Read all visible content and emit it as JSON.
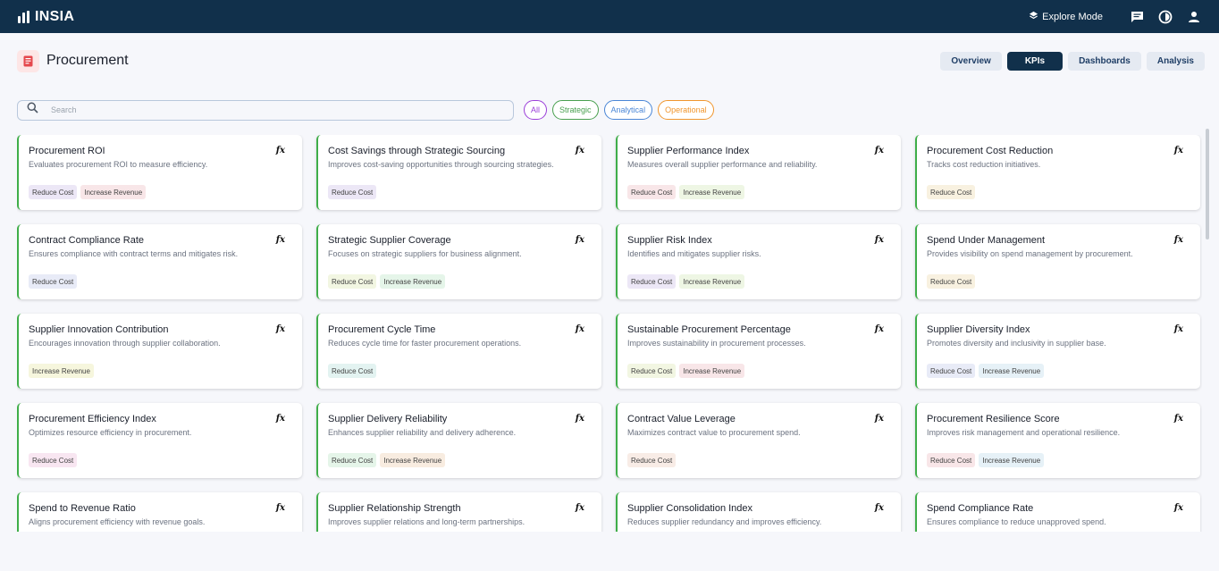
{
  "app": {
    "name": "INSIA"
  },
  "topbar": {
    "explore_label": "Explore Mode"
  },
  "page": {
    "title": "Procurement"
  },
  "tabs": [
    {
      "label": "Overview",
      "active": false
    },
    {
      "label": "KPIs",
      "active": true
    },
    {
      "label": "Dashboards",
      "active": false
    },
    {
      "label": "Analysis",
      "active": false
    }
  ],
  "search": {
    "placeholder": "Search",
    "value": ""
  },
  "filters": [
    {
      "label": "All",
      "color": "#9b3fd9"
    },
    {
      "label": "Strategic",
      "color": "#49a04f"
    },
    {
      "label": "Analytical",
      "color": "#4a86d6"
    },
    {
      "label": "Operational",
      "color": "#f0962e"
    }
  ],
  "fx_label": "fx",
  "cards": [
    {
      "title": "Procurement ROI",
      "desc": "Evaluates procurement ROI to measure efficiency.",
      "tags": [
        {
          "label": "Reduce Cost",
          "bg": "#ece7f6"
        },
        {
          "label": "Increase Revenue",
          "bg": "#f8e6e8"
        }
      ]
    },
    {
      "title": "Cost Savings through Strategic Sourcing",
      "desc": "Improves cost-saving opportunities through sourcing strategies.",
      "tags": [
        {
          "label": "Reduce Cost",
          "bg": "#ece7f6"
        }
      ]
    },
    {
      "title": "Supplier Performance Index",
      "desc": "Measures overall supplier performance and reliability.",
      "tags": [
        {
          "label": "Reduce Cost",
          "bg": "#f8e6e8"
        },
        {
          "label": "Increase Revenue",
          "bg": "#eef6e4"
        }
      ]
    },
    {
      "title": "Procurement Cost Reduction",
      "desc": "Tracks cost reduction initiatives.",
      "tags": [
        {
          "label": "Reduce Cost",
          "bg": "#f8f1e0"
        }
      ]
    },
    {
      "title": "Contract Compliance Rate",
      "desc": "Ensures compliance with contract terms and mitigates risk.",
      "tags": [
        {
          "label": "Reduce Cost",
          "bg": "#e8ebf7"
        }
      ]
    },
    {
      "title": "Strategic Supplier Coverage",
      "desc": "Focuses on strategic suppliers for business alignment.",
      "tags": [
        {
          "label": "Reduce Cost",
          "bg": "#f2f6e2"
        },
        {
          "label": "Increase Revenue",
          "bg": "#e5f5e9"
        }
      ]
    },
    {
      "title": "Supplier Risk Index",
      "desc": "Identifies and mitigates supplier risks.",
      "tags": [
        {
          "label": "Reduce Cost",
          "bg": "#ece7f6"
        },
        {
          "label": "Increase Revenue",
          "bg": "#eef6e4"
        }
      ]
    },
    {
      "title": "Spend Under Management",
      "desc": "Provides visibility on spend management by procurement.",
      "tags": [
        {
          "label": "Reduce Cost",
          "bg": "#f8f1e0"
        }
      ]
    },
    {
      "title": "Supplier Innovation Contribution",
      "desc": "Encourages innovation through supplier collaboration.",
      "tags": [
        {
          "label": "Increase Revenue",
          "bg": "#f6f6dd"
        }
      ]
    },
    {
      "title": "Procurement Cycle Time",
      "desc": "Reduces cycle time for faster procurement operations.",
      "tags": [
        {
          "label": "Reduce Cost",
          "bg": "#e3f3f1"
        }
      ]
    },
    {
      "title": "Sustainable Procurement Percentage",
      "desc": "Improves sustainability in procurement processes.",
      "tags": [
        {
          "label": "Reduce Cost",
          "bg": "#f2f6e2"
        },
        {
          "label": "Increase Revenue",
          "bg": "#f8e6e8"
        }
      ]
    },
    {
      "title": "Supplier Diversity Index",
      "desc": "Promotes diversity and inclusivity in supplier base.",
      "tags": [
        {
          "label": "Reduce Cost",
          "bg": "#e8ebf7"
        },
        {
          "label": "Increase Revenue",
          "bg": "#e6f1f7"
        }
      ]
    },
    {
      "title": "Procurement Efficiency Index",
      "desc": "Optimizes resource efficiency in procurement.",
      "tags": [
        {
          "label": "Reduce Cost",
          "bg": "#f8e6f1"
        }
      ]
    },
    {
      "title": "Supplier Delivery Reliability",
      "desc": "Enhances supplier reliability and delivery adherence.",
      "tags": [
        {
          "label": "Reduce Cost",
          "bg": "#e5f5e9"
        },
        {
          "label": "Increase Revenue",
          "bg": "#f8ece0"
        }
      ]
    },
    {
      "title": "Contract Value Leverage",
      "desc": "Maximizes contract value to procurement spend.",
      "tags": [
        {
          "label": "Reduce Cost",
          "bg": "#f8ece6"
        }
      ]
    },
    {
      "title": "Procurement Resilience Score",
      "desc": "Improves risk management and operational resilience.",
      "tags": [
        {
          "label": "Reduce Cost",
          "bg": "#f8e6e8"
        },
        {
          "label": "Increase Revenue",
          "bg": "#e6f1f7"
        }
      ]
    },
    {
      "title": "Spend to Revenue Ratio",
      "desc": "Aligns procurement efficiency with revenue goals.",
      "tags": []
    },
    {
      "title": "Supplier Relationship Strength",
      "desc": "Improves supplier relations and long-term partnerships.",
      "tags": []
    },
    {
      "title": "Supplier Consolidation Index",
      "desc": "Reduces supplier redundancy and improves efficiency.",
      "tags": []
    },
    {
      "title": "Spend Compliance Rate",
      "desc": "Ensures compliance to reduce unapproved spend.",
      "tags": []
    }
  ]
}
